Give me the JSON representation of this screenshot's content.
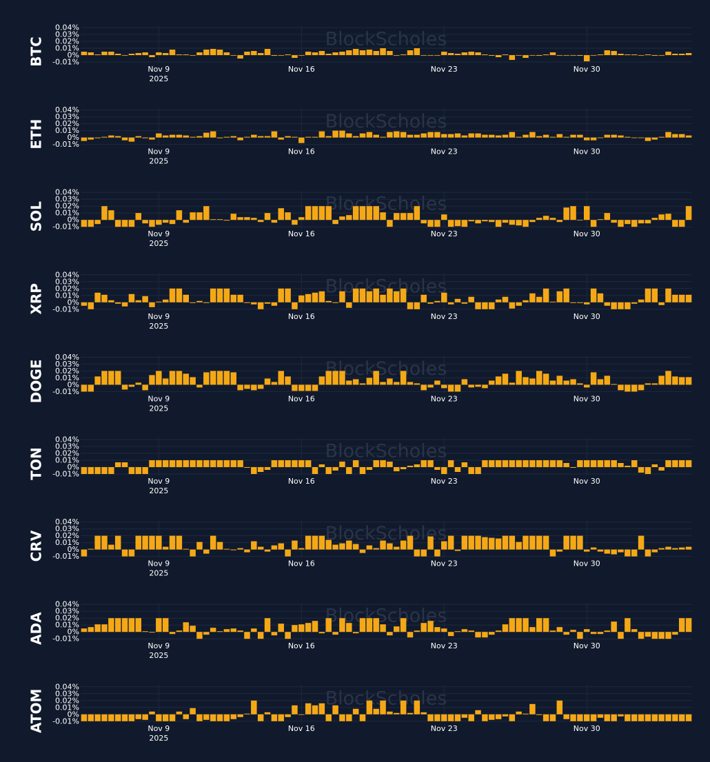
{
  "theme": {
    "background": "#111a2c",
    "bar_color": "#f5a816",
    "grid_color": "#1e2940",
    "text_color": "#ffffff",
    "watermark_color": "#2a3448"
  },
  "watermark": "BlockScholes",
  "chart_data": {
    "type": "bar",
    "y_unit": "%",
    "ylim": [
      -0.012,
      0.042
    ],
    "y_ticks": [
      -0.01,
      0,
      0.01,
      0.02,
      0.03,
      0.04
    ],
    "y_tick_labels": [
      "-0.01%",
      "0%",
      "0.01%",
      "0.02%",
      "0.03%",
      "0.04%"
    ],
    "x_ticks": [
      {
        "index": 11,
        "label": "Nov 9",
        "sublabel": "2025"
      },
      {
        "index": 32,
        "label": "Nov 16",
        "sublabel": ""
      },
      {
        "index": 53,
        "label": "Nov 23",
        "sublabel": ""
      },
      {
        "index": 74,
        "label": "Nov 30",
        "sublabel": ""
      }
    ],
    "x_count": 90,
    "panels": [
      {
        "name": "BTC",
        "values": [
          0.005,
          0.004,
          0.001,
          0.005,
          0.005,
          0.002,
          0,
          0.002,
          0.003,
          0.004,
          -0.003,
          0.004,
          0.003,
          0.008,
          0.001,
          0.001,
          0,
          0.004,
          0.008,
          0.009,
          0.008,
          0.004,
          0,
          -0.005,
          0.005,
          0.006,
          0.003,
          0.009,
          -0.001,
          0,
          0.001,
          -0.004,
          0,
          0.005,
          0.004,
          0.006,
          0.002,
          0.004,
          0.005,
          0.007,
          0.009,
          0.007,
          0.008,
          0.006,
          0.01,
          0.006,
          0,
          0.001,
          0.007,
          0.01,
          0,
          0,
          0,
          0.005,
          0.003,
          0.002,
          0.004,
          0.005,
          0.004,
          0.001,
          -0.001,
          -0.003,
          0.001,
          -0.007,
          0,
          -0.004,
          0,
          -0.001,
          0.001,
          0.004,
          0,
          0,
          0,
          -0.001,
          -0.009,
          0,
          0.001,
          0.007,
          0.006,
          0.002,
          0.001,
          0.001,
          0,
          0.001,
          -0.001,
          0,
          0.005,
          0.002,
          0.002,
          0.003
        ]
      },
      {
        "name": "ETH",
        "values": [
          -0.005,
          -0.003,
          -0.001,
          0.001,
          0.003,
          0.002,
          -0.004,
          -0.006,
          0.002,
          -0.001,
          -0.003,
          0.006,
          0.003,
          0.004,
          0.004,
          0.003,
          0.001,
          0.002,
          0.007,
          0.009,
          -0.001,
          0.001,
          0.002,
          -0.004,
          0.001,
          0.004,
          0.002,
          0.002,
          0.009,
          -0.003,
          0.002,
          0.001,
          -0.008,
          0.001,
          0.001,
          0.009,
          0.002,
          0.01,
          0.01,
          0.006,
          0.002,
          0.006,
          0.008,
          0.004,
          0.001,
          0.008,
          0.009,
          0.008,
          0.004,
          0.004,
          0.006,
          0.008,
          0.008,
          0.005,
          0.005,
          0.006,
          0.003,
          0.006,
          0.006,
          0.004,
          0.004,
          0.003,
          0.004,
          0.008,
          0.001,
          0.004,
          0.008,
          0.002,
          0.004,
          0.001,
          0.005,
          0.001,
          0.004,
          0.004,
          -0.004,
          -0.004,
          0,
          0.004,
          0.004,
          0.003,
          0.001,
          0,
          0,
          -0.005,
          -0.003,
          0.001,
          0.008,
          0.005,
          0.005,
          0.003
        ]
      },
      {
        "name": "SOL",
        "values": [
          -0.01,
          -0.01,
          -0.006,
          0.02,
          0.014,
          -0.01,
          -0.01,
          -0.01,
          0.01,
          -0.005,
          -0.01,
          -0.007,
          -0.004,
          -0.006,
          0.014,
          -0.004,
          0.011,
          0.011,
          0.02,
          0.001,
          0.001,
          -0.001,
          0.009,
          0.004,
          0.004,
          0.003,
          -0.003,
          0.01,
          -0.004,
          0.017,
          0.011,
          -0.007,
          0.004,
          0.02,
          0.02,
          0.02,
          0.02,
          -0.006,
          0.005,
          0.007,
          0.02,
          0.02,
          0.02,
          0.02,
          0.011,
          -0.01,
          0.01,
          0.01,
          0.01,
          0.02,
          -0.005,
          -0.01,
          -0.01,
          0.008,
          -0.01,
          -0.009,
          -0.01,
          -0.002,
          -0.005,
          -0.002,
          -0.003,
          -0.01,
          -0.004,
          -0.007,
          -0.008,
          -0.01,
          -0.003,
          0.003,
          0.006,
          0.003,
          -0.003,
          0.018,
          0.02,
          0,
          0.02,
          -0.01,
          0.001,
          0.01,
          -0.004,
          -0.01,
          -0.006,
          -0.01,
          -0.005,
          -0.005,
          0.003,
          0.008,
          0.009,
          -0.01,
          -0.01,
          0.02
        ]
      },
      {
        "name": "XRP",
        "values": [
          -0.005,
          -0.01,
          0.014,
          0.011,
          0.003,
          -0.002,
          -0.006,
          0.012,
          0.003,
          0.009,
          -0.007,
          0.001,
          0.004,
          0.02,
          0.02,
          0.011,
          -0.001,
          0.002,
          -0.001,
          0.02,
          0.02,
          0.02,
          0.011,
          0.011,
          -0.001,
          -0.003,
          -0.01,
          -0.002,
          -0.005,
          0.02,
          0.02,
          -0.01,
          0.01,
          0.012,
          0.014,
          0.016,
          0.002,
          -0.001,
          0.016,
          -0.008,
          0.02,
          0.02,
          0.016,
          0.02,
          0.011,
          0.02,
          0.016,
          0.02,
          -0.01,
          -0.01,
          0.011,
          -0.002,
          0.002,
          0.014,
          -0.003,
          0.005,
          -0.002,
          0.008,
          -0.01,
          -0.01,
          -0.01,
          0.004,
          0.008,
          -0.009,
          -0.005,
          0.003,
          0.013,
          0.008,
          0.02,
          0.001,
          0.016,
          0.02,
          -0.001,
          -0.001,
          -0.003,
          0.02,
          0.013,
          -0.005,
          -0.01,
          -0.01,
          -0.01,
          -0.002,
          0.004,
          0.02,
          0.02,
          -0.004,
          0.02,
          0.011,
          0.011,
          0.011
        ]
      },
      {
        "name": "DOGE",
        "values": [
          -0.01,
          -0.01,
          0.012,
          0.02,
          0.02,
          0.02,
          -0.007,
          -0.003,
          0.003,
          -0.008,
          0.014,
          0.02,
          0.009,
          0.02,
          0.02,
          0.016,
          0.011,
          -0.004,
          0.018,
          0.02,
          0.02,
          0.02,
          0.018,
          -0.008,
          -0.006,
          -0.008,
          -0.006,
          0.009,
          0.004,
          0.02,
          0.012,
          -0.009,
          -0.009,
          -0.009,
          -0.009,
          0.012,
          0.02,
          0.02,
          0.02,
          0.006,
          0.008,
          0.002,
          0.01,
          0.02,
          0.004,
          0.009,
          0.004,
          0.02,
          0.004,
          0.002,
          -0.008,
          -0.004,
          0.006,
          -0.005,
          -0.01,
          -0.01,
          0.008,
          -0.004,
          -0.003,
          -0.005,
          0.006,
          0.012,
          0.016,
          0.003,
          0.02,
          0.011,
          0.009,
          0.02,
          0.016,
          0.006,
          0.013,
          0.006,
          0.008,
          0.002,
          -0.004,
          0.018,
          0.008,
          0.013,
          0.001,
          -0.008,
          -0.01,
          -0.01,
          -0.008,
          0.002,
          0.002,
          0.013,
          0.02,
          0.012,
          0.011,
          0.011
        ]
      },
      {
        "name": "TON",
        "values": [
          -0.01,
          -0.01,
          -0.01,
          -0.01,
          -0.01,
          0.007,
          0.007,
          -0.01,
          -0.01,
          -0.01,
          0.01,
          0.01,
          0.01,
          0.01,
          0.01,
          0.01,
          0.01,
          0.01,
          0.01,
          0.01,
          0.01,
          0.01,
          0.01,
          0.01,
          -0.001,
          -0.01,
          -0.007,
          -0.004,
          0.01,
          0.01,
          0.01,
          0.01,
          0.01,
          0.01,
          -0.01,
          0.004,
          -0.01,
          -0.005,
          0.008,
          -0.01,
          0.01,
          -0.01,
          -0.004,
          0.01,
          0.01,
          0.008,
          -0.006,
          -0.003,
          0.002,
          0.004,
          0.01,
          0.01,
          -0.004,
          -0.01,
          0.01,
          -0.007,
          0.007,
          -0.01,
          -0.01,
          0.01,
          0.01,
          0.01,
          0.01,
          0.01,
          0.01,
          0.01,
          0.01,
          0.01,
          0.01,
          0.01,
          0.01,
          0.006,
          -0.001,
          0.01,
          0.01,
          0.01,
          0.01,
          0.01,
          0.01,
          0.006,
          0.002,
          0.01,
          -0.008,
          -0.01,
          0.004,
          -0.005,
          0.01,
          0.01,
          0.01,
          0.01
        ]
      },
      {
        "name": "CRV",
        "values": [
          -0.01,
          0.001,
          0.02,
          0.02,
          0.007,
          0.02,
          -0.01,
          -0.01,
          0.02,
          0.02,
          0.02,
          0.02,
          0.004,
          0.02,
          0.02,
          0.001,
          -0.01,
          0.011,
          -0.006,
          0.02,
          0.011,
          0.001,
          -0.001,
          0.002,
          -0.004,
          0.012,
          0.004,
          -0.003,
          0.006,
          0.009,
          -0.01,
          0.013,
          0.002,
          0.02,
          0.02,
          0.02,
          0.014,
          0.007,
          0.009,
          0.013,
          0.008,
          -0.005,
          0.006,
          0.002,
          0.013,
          0.009,
          0.004,
          0.013,
          0.02,
          -0.01,
          -0.01,
          0.019,
          -0.01,
          0.012,
          0.02,
          -0.002,
          0.02,
          0.02,
          0.02,
          0.018,
          0.017,
          0.016,
          0.02,
          0.02,
          0.011,
          0.02,
          0.02,
          0.02,
          0.02,
          -0.01,
          -0.003,
          0.02,
          0.02,
          0.02,
          -0.003,
          0.003,
          -0.003,
          -0.006,
          -0.007,
          -0.004,
          -0.01,
          -0.01,
          0.02,
          -0.01,
          -0.004,
          0.002,
          0.004,
          0.002,
          0.003,
          0.004
        ]
      },
      {
        "name": "ADA",
        "values": [
          0.005,
          0.007,
          0.011,
          0.011,
          0.02,
          0.02,
          0.02,
          0.02,
          0.02,
          0.001,
          -0.001,
          0.02,
          0.02,
          -0.003,
          0.002,
          0.014,
          0.009,
          -0.01,
          -0.004,
          0.006,
          0.001,
          0.004,
          0.005,
          0.002,
          -0.01,
          0.005,
          -0.01,
          0.02,
          -0.005,
          0.012,
          -0.01,
          0.01,
          0.011,
          0.013,
          0.016,
          -0.002,
          0.02,
          -0.004,
          0.02,
          0.013,
          -0.002,
          0.02,
          0.02,
          0.02,
          0.011,
          -0.005,
          0.008,
          0.02,
          -0.008,
          0.002,
          0.013,
          0.016,
          0.007,
          0.005,
          -0.006,
          0.001,
          0.004,
          0.002,
          -0.008,
          -0.008,
          -0.004,
          0.002,
          0.011,
          0.02,
          0.02,
          0.02,
          0.007,
          0.02,
          0.02,
          0.002,
          0.007,
          -0.004,
          0.003,
          -0.01,
          0.004,
          -0.003,
          -0.003,
          0.002,
          0.015,
          -0.01,
          0.02,
          0.004,
          -0.01,
          -0.007,
          -0.01,
          -0.01,
          -0.01,
          -0.004,
          0.02,
          0.02
        ]
      },
      {
        "name": "ATOM",
        "values": [
          -0.01,
          -0.01,
          -0.01,
          -0.01,
          -0.01,
          -0.01,
          -0.01,
          -0.01,
          -0.007,
          -0.008,
          0.004,
          -0.01,
          -0.01,
          -0.01,
          0.004,
          -0.007,
          0.009,
          -0.01,
          -0.008,
          -0.01,
          -0.01,
          -0.01,
          -0.007,
          -0.004,
          0.001,
          0.02,
          -0.01,
          0.003,
          -0.01,
          -0.01,
          -0.004,
          0.013,
          0,
          0.016,
          0.013,
          0.016,
          -0.01,
          0.013,
          -0.01,
          -0.01,
          0.008,
          -0.01,
          0.02,
          0.008,
          0.02,
          0.004,
          0.002,
          0.02,
          0.002,
          0.02,
          0.003,
          -0.01,
          -0.01,
          -0.01,
          -0.01,
          -0.01,
          -0.005,
          -0.01,
          0.006,
          -0.01,
          -0.008,
          -0.007,
          -0.003,
          -0.01,
          0.004,
          0.001,
          0.015,
          -0.001,
          -0.01,
          -0.01,
          0.02,
          -0.007,
          -0.01,
          -0.01,
          -0.01,
          -0.01,
          -0.005,
          -0.01,
          -0.01,
          -0.003,
          -0.01,
          -0.01,
          -0.01,
          -0.01,
          -0.01,
          -0.01,
          -0.01,
          -0.01,
          -0.01,
          -0.01
        ]
      }
    ]
  }
}
